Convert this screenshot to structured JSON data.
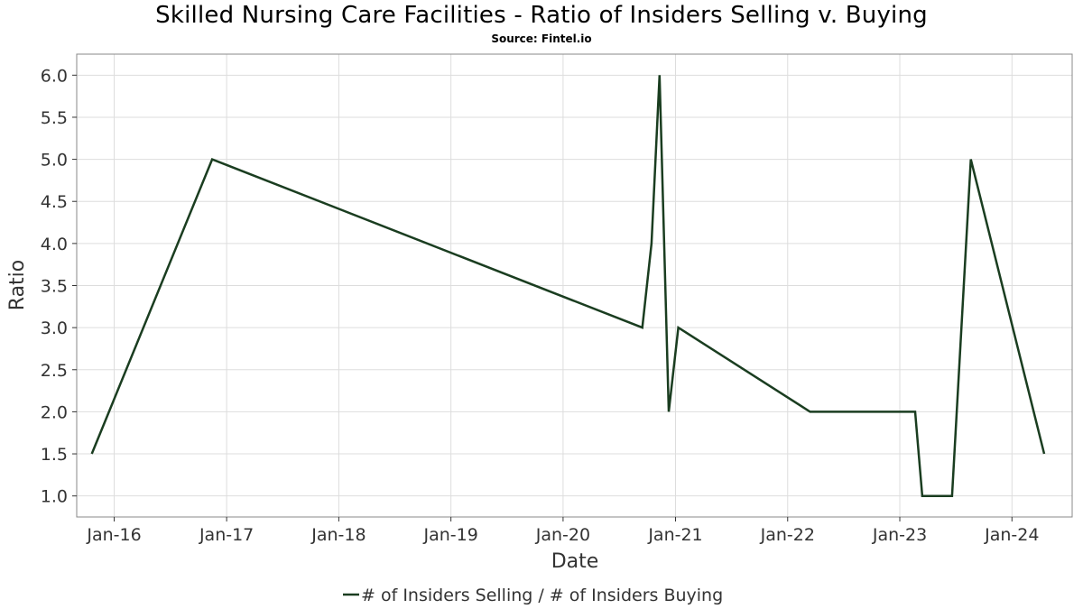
{
  "chart_data": {
    "type": "line",
    "title": "Skilled Nursing Care Facilities - Ratio of Insiders Selling v. Buying",
    "subtitle": "Source: Fintel.io",
    "xlabel": "Date",
    "ylabel": "Ratio",
    "ylim": [
      0.75,
      6.25
    ],
    "yticks": [
      1.0,
      1.5,
      2.0,
      2.5,
      3.0,
      3.5,
      4.0,
      4.5,
      5.0,
      5.5,
      6.0
    ],
    "xlim": [
      "2015-09-01",
      "2024-07-15"
    ],
    "xticks": [
      {
        "date": "2016-01-01",
        "label": "Jan-16"
      },
      {
        "date": "2017-01-01",
        "label": "Jan-17"
      },
      {
        "date": "2018-01-01",
        "label": "Jan-18"
      },
      {
        "date": "2019-01-01",
        "label": "Jan-19"
      },
      {
        "date": "2020-01-01",
        "label": "Jan-20"
      },
      {
        "date": "2021-01-01",
        "label": "Jan-21"
      },
      {
        "date": "2022-01-01",
        "label": "Jan-22"
      },
      {
        "date": "2023-01-01",
        "label": "Jan-23"
      },
      {
        "date": "2024-01-01",
        "label": "Jan-24"
      }
    ],
    "grid": true,
    "legend_position": "bottom-center",
    "series": [
      {
        "name": "# of Insiders Selling / # of Insiders Buying",
        "color": "#1a3d20",
        "points": [
          {
            "x": "2015-10-20",
            "y": 1.5
          },
          {
            "x": "2016-11-15",
            "y": 5.0
          },
          {
            "x": "2020-09-15",
            "y": 3.0
          },
          {
            "x": "2020-10-15",
            "y": 4.0
          },
          {
            "x": "2020-11-10",
            "y": 6.0
          },
          {
            "x": "2020-12-10",
            "y": 2.0
          },
          {
            "x": "2021-01-10",
            "y": 3.0
          },
          {
            "x": "2022-03-15",
            "y": 2.0
          },
          {
            "x": "2023-02-20",
            "y": 2.0
          },
          {
            "x": "2023-03-15",
            "y": 1.0
          },
          {
            "x": "2023-06-20",
            "y": 1.0
          },
          {
            "x": "2023-08-20",
            "y": 5.0
          },
          {
            "x": "2024-04-15",
            "y": 1.5
          }
        ]
      }
    ]
  },
  "colors": {
    "grid": "#dddddd",
    "frame": "#888888",
    "tick_text": "#333333",
    "axis_label": "#333333"
  }
}
